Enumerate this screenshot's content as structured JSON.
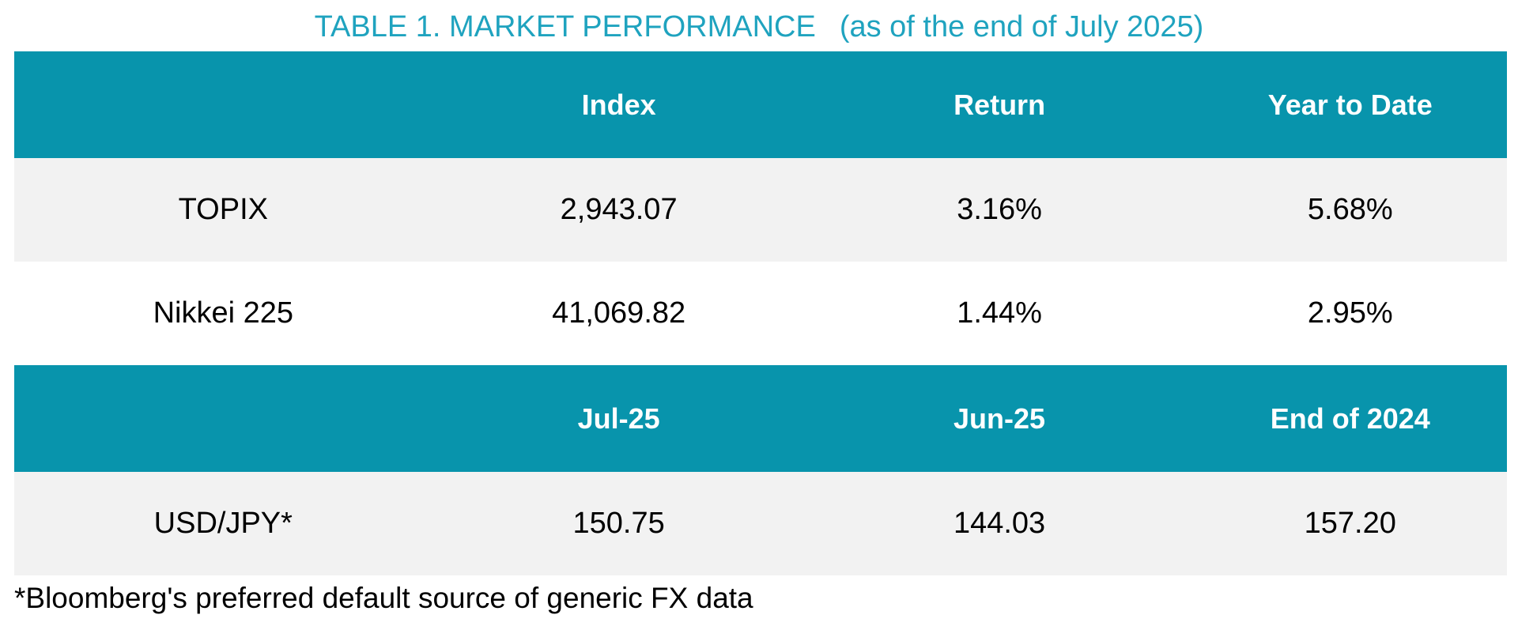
{
  "title": {
    "main": "TABLE 1. MARKET PERFORMANCE",
    "suffix": "(as of the end of July 2025)"
  },
  "colors": {
    "header_background": "#0894AC",
    "title_text": "#1FA3BF",
    "alternating_row_background": "#F2F2F2",
    "header_text": "#FFFFFF",
    "body_text": "#000000",
    "page_background": "#FFFFFF"
  },
  "chart_data": {
    "type": "table",
    "title": "TABLE 1. MARKET PERFORMANCE",
    "title_suffix": "(as of the end of July 2025)",
    "sections": [
      {
        "columns": [
          "",
          "Index",
          "Return",
          "Year to Date"
        ],
        "rows": [
          [
            "TOPIX",
            "2,943.07",
            "3.16%",
            "5.68%"
          ],
          [
            "Nikkei 225",
            "41,069.82",
            "1.44%",
            "2.95%"
          ]
        ]
      },
      {
        "columns": [
          "",
          "Jul-25",
          "Jun-25",
          "End of 2024"
        ],
        "rows": [
          [
            "USD/JPY*",
            "150.75",
            "144.03",
            "157.20"
          ]
        ]
      }
    ],
    "footnote": "*Bloomberg's preferred default source of generic FX data"
  }
}
